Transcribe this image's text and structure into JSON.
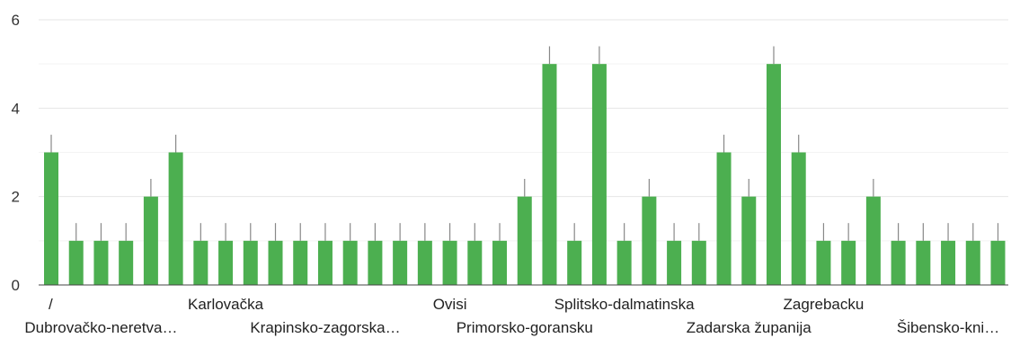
{
  "chart_data": {
    "type": "bar",
    "categories": [
      "/",
      "",
      "Dubrovačko-neretva…",
      "",
      "",
      "",
      "",
      "Karlovačka",
      "",
      "",
      "",
      "Krapinsko-zagorska…",
      "",
      "",
      "",
      "",
      "Ovisi",
      "",
      "",
      "Primorsko-goransku",
      "",
      "",
      "",
      "Splitsko-dalmatinska",
      "",
      "",
      "",
      "",
      "Zadarska županija",
      "",
      "",
      "Zagrebacku",
      "",
      "",
      "",
      "",
      "Šibensko-kni…",
      "",
      ""
    ],
    "values": [
      3,
      1,
      1,
      1,
      2,
      3,
      1,
      1,
      1,
      1,
      1,
      1,
      1,
      1,
      1,
      1,
      1,
      1,
      1,
      2,
      5,
      1,
      5,
      1,
      2,
      1,
      1,
      3,
      2,
      5,
      3,
      1,
      1,
      2,
      1,
      1,
      1,
      1,
      1
    ],
    "error": 0.4,
    "ylim": [
      0,
      6
    ],
    "yticks": [
      0,
      2,
      4,
      6
    ],
    "title": "",
    "xlabel": "",
    "ylabel": "",
    "grid": true,
    "colors": {
      "bar": "#4CAF50",
      "error_bar": "#888888",
      "grid": "#e6e6e6",
      "minor_grid": "#f3f3f3",
      "axis": "#444444"
    }
  }
}
